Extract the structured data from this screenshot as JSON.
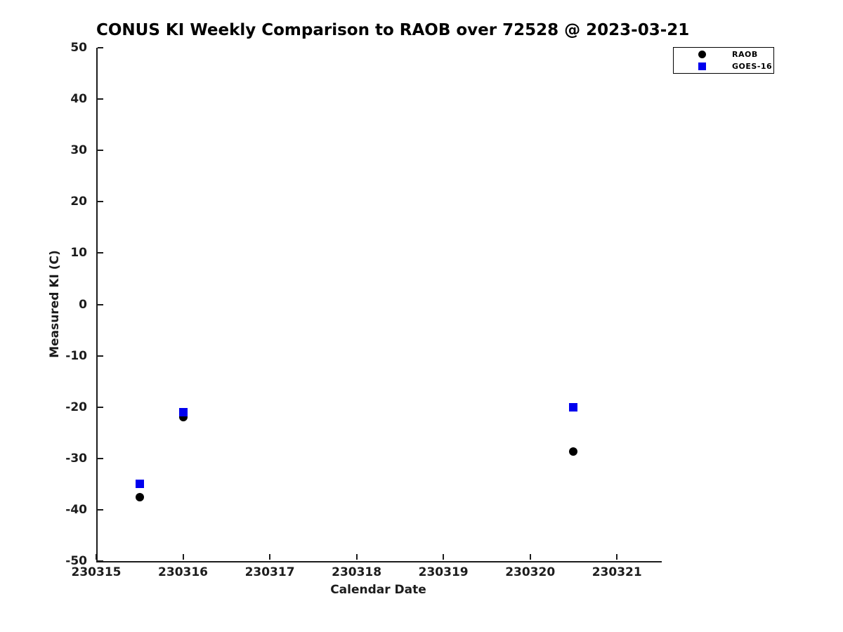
{
  "figure_background": "#ffffff",
  "colors": {
    "axis": "#1c1c1c",
    "title_text": "#000000",
    "raob_marker": "#000000",
    "goes16_marker": "#0000ee"
  },
  "legend": {
    "position": "top-right-outside-plot",
    "entries": [
      {
        "label": "RAOB",
        "marker": "circle",
        "color": "#0000ee"
      },
      {
        "label": "GOES-16",
        "marker": "square",
        "color": "#0000ee"
      }
    ]
  },
  "chart_data": {
    "type": "scatter",
    "title": "CONUS KI Weekly Comparison to RAOB over 72528 @ 2023-03-21",
    "xlabel": "Calendar Date",
    "ylabel": "Measured KI (C)",
    "xlim": [
      230315,
      230321.5
    ],
    "ylim": [
      -50,
      50
    ],
    "grid": false,
    "box": "left-bottom-spines-only",
    "x_ticks": [
      230315,
      230316,
      230317,
      230318,
      230319,
      230320,
      230321
    ],
    "x_tick_labels": [
      "230315",
      "230316",
      "230317",
      "230318",
      "230319",
      "230320",
      "230321"
    ],
    "y_ticks": [
      50,
      40,
      30,
      20,
      10,
      0,
      -10,
      -20,
      -30,
      -40,
      -50
    ],
    "y_tick_labels": [
      "50",
      "40",
      "30",
      "20",
      "10",
      "0",
      "-10",
      "-20",
      "-30",
      "-40",
      "-50"
    ],
    "series": [
      {
        "name": "RAOB",
        "marker": "circle",
        "color": "#000000",
        "points": [
          {
            "x": 230315.5,
            "y": -37.5
          },
          {
            "x": 230316.0,
            "y": -22.0
          },
          {
            "x": 230320.5,
            "y": -28.7
          }
        ]
      },
      {
        "name": "GOES-16",
        "marker": "square",
        "color": "#0000ee",
        "points": [
          {
            "x": 230315.5,
            "y": -35.0
          },
          {
            "x": 230316.0,
            "y": -21.0
          },
          {
            "x": 230320.5,
            "y": -20.0
          }
        ]
      }
    ]
  }
}
